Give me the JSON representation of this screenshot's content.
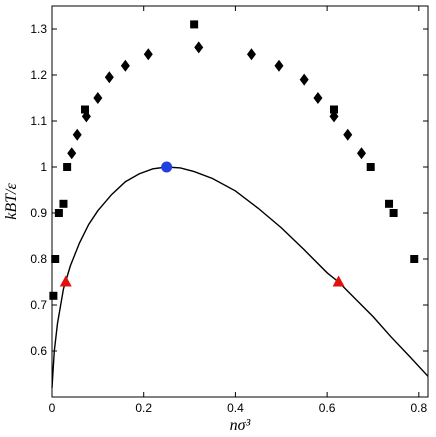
{
  "chart_data": {
    "type": "scatter",
    "title": "",
    "xlabel": "nσ³",
    "ylabel": "kBT/ε",
    "xlim": [
      0,
      0.82
    ],
    "ylim": [
      0.5,
      1.35
    ],
    "x_ticks": [
      0,
      0.2,
      0.4,
      0.6,
      0.8
    ],
    "x_tick_labels": [
      "0",
      "0.2",
      "0.4",
      "0.6",
      "0.8"
    ],
    "y_ticks": [
      0.6,
      0.7,
      0.8,
      0.9,
      1.0,
      1.1,
      1.2,
      1.3
    ],
    "y_tick_labels": [
      "0.6",
      "0.7",
      "0.8",
      "0.9",
      "1",
      "1.1",
      "1.2",
      "1.3"
    ],
    "grid": false,
    "legend": "none",
    "colors": {
      "squares": "#000000",
      "diamonds": "#000000",
      "curve": "#000000",
      "critical_point": "#1f3fe0",
      "triangles": "#e01010"
    },
    "series": [
      {
        "marker": "square",
        "points": [
          [
            0.003,
            0.72
          ],
          [
            0.007,
            0.8
          ],
          [
            0.015,
            0.9
          ],
          [
            0.025,
            0.92
          ],
          [
            0.033,
            1.0
          ],
          [
            0.072,
            1.125
          ],
          [
            0.31,
            1.31
          ],
          [
            0.615,
            1.125
          ],
          [
            0.695,
            1.0
          ],
          [
            0.735,
            0.92
          ],
          [
            0.745,
            0.9
          ],
          [
            0.79,
            0.8
          ]
        ]
      },
      {
        "marker": "diamond",
        "points": [
          [
            0.043,
            1.03
          ],
          [
            0.055,
            1.07
          ],
          [
            0.075,
            1.11
          ],
          [
            0.1,
            1.15
          ],
          [
            0.125,
            1.195
          ],
          [
            0.16,
            1.22
          ],
          [
            0.21,
            1.245
          ],
          [
            0.32,
            1.26
          ],
          [
            0.435,
            1.245
          ],
          [
            0.495,
            1.22
          ],
          [
            0.55,
            1.19
          ],
          [
            0.58,
            1.15
          ],
          [
            0.615,
            1.11
          ],
          [
            0.645,
            1.07
          ],
          [
            0.675,
            1.03
          ]
        ]
      },
      {
        "marker": "line",
        "points": [
          [
            0.0,
            0.52
          ],
          [
            0.005,
            0.6
          ],
          [
            0.012,
            0.66
          ],
          [
            0.025,
            0.735
          ],
          [
            0.04,
            0.785
          ],
          [
            0.06,
            0.835
          ],
          [
            0.08,
            0.875
          ],
          [
            0.1,
            0.905
          ],
          [
            0.13,
            0.94
          ],
          [
            0.16,
            0.968
          ],
          [
            0.19,
            0.985
          ],
          [
            0.22,
            0.996
          ],
          [
            0.25,
            1.0
          ],
          [
            0.28,
            0.998
          ],
          [
            0.31,
            0.99
          ],
          [
            0.35,
            0.975
          ],
          [
            0.4,
            0.948
          ],
          [
            0.45,
            0.91
          ],
          [
            0.5,
            0.868
          ],
          [
            0.55,
            0.82
          ],
          [
            0.6,
            0.77
          ],
          [
            0.625,
            0.75
          ],
          [
            0.66,
            0.715
          ],
          [
            0.7,
            0.675
          ],
          [
            0.74,
            0.63
          ],
          [
            0.78,
            0.588
          ],
          [
            0.82,
            0.545
          ]
        ]
      },
      {
        "marker": "circle",
        "points": [
          [
            0.25,
            1.0
          ]
        ]
      },
      {
        "marker": "triangle",
        "points": [
          [
            0.03,
            0.75
          ],
          [
            0.625,
            0.75
          ]
        ]
      }
    ]
  }
}
